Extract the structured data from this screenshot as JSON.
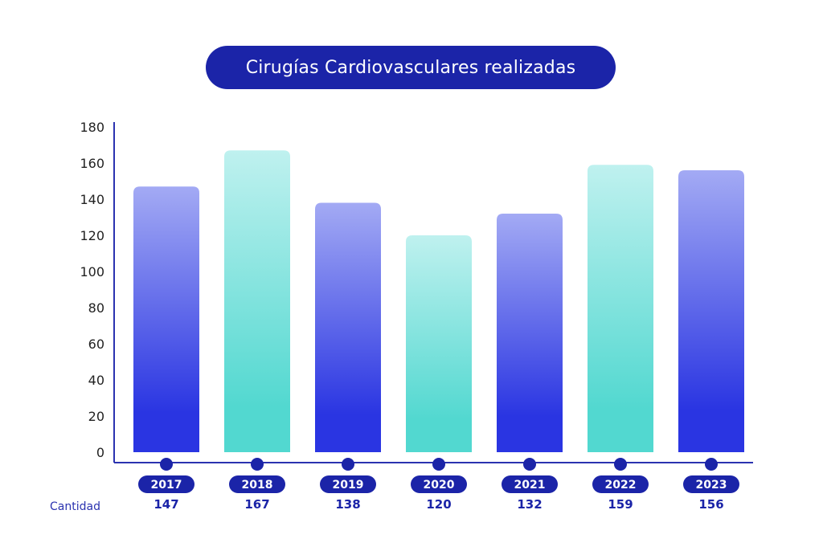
{
  "chart_data": {
    "type": "bar",
    "title": "Cirugías Cardiovasculares realizadas",
    "categories": [
      "2017",
      "2018",
      "2019",
      "2020",
      "2021",
      "2022",
      "2023"
    ],
    "values": [
      147,
      167,
      138,
      120,
      132,
      159,
      156
    ],
    "value_labels": [
      "147",
      "167",
      "138",
      "120",
      "132",
      "159",
      "156"
    ],
    "row_label": "Cantidad",
    "ylim": [
      0,
      180
    ],
    "yticks": [
      0,
      20,
      40,
      60,
      80,
      100,
      120,
      140,
      160,
      180
    ],
    "grid": false,
    "legend": "none",
    "colors": {
      "blue_bar_top": "#a3aaf4",
      "blue_bar_bottom": "#2a35e2",
      "teal_bar_top": "#bff1ef",
      "teal_bar_bottom": "#52d8d0",
      "accent": "#1b24a8",
      "axis": "#2b33b0"
    },
    "bar_color_pattern": [
      "blue",
      "teal",
      "blue",
      "teal",
      "blue",
      "teal",
      "blue"
    ]
  }
}
